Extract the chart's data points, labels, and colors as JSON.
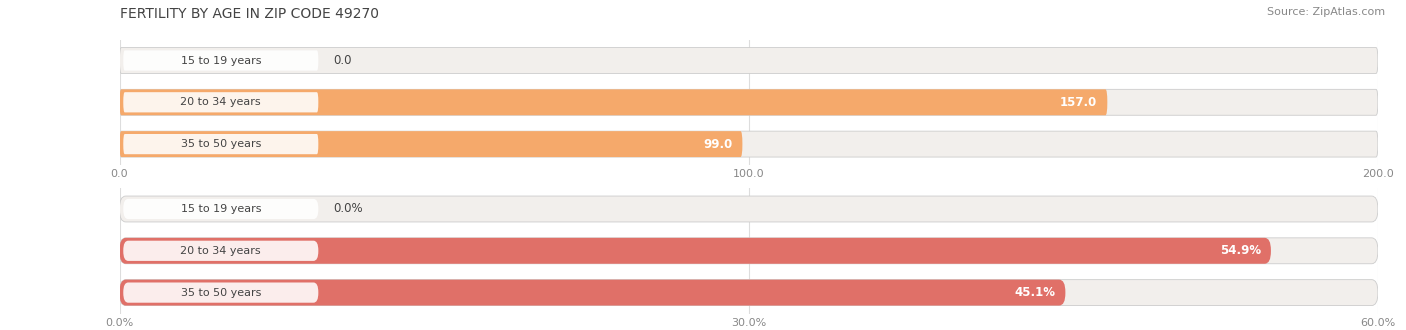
{
  "title": "FERTILITY BY AGE IN ZIP CODE 49270",
  "source": "Source: ZipAtlas.com",
  "chart1": {
    "categories": [
      "15 to 19 years",
      "20 to 34 years",
      "35 to 50 years"
    ],
    "values": [
      0.0,
      157.0,
      99.0
    ],
    "xlim": [
      0,
      200
    ],
    "xticks": [
      0.0,
      100.0,
      200.0
    ],
    "xtick_labels": [
      "0.0",
      "100.0",
      "200.0"
    ],
    "bar_color": "#F5A96B",
    "bar_bg_color": "#F2EFEC",
    "pill_bg": "#FFFFFF"
  },
  "chart2": {
    "categories": [
      "15 to 19 years",
      "20 to 34 years",
      "35 to 50 years"
    ],
    "values": [
      0.0,
      54.9,
      45.1
    ],
    "xlim": [
      0,
      60
    ],
    "xticks": [
      0.0,
      30.0,
      60.0
    ],
    "xtick_labels": [
      "0.0%",
      "30.0%",
      "60.0%"
    ],
    "bar_color": "#E07068",
    "bar_bg_color": "#F2EFEC",
    "pill_bg": "#FFFFFF"
  },
  "bar_height": 0.62,
  "label_fontsize": 8.5,
  "category_fontsize": 8.0,
  "title_fontsize": 10,
  "source_fontsize": 8,
  "title_color": "#444444",
  "source_color": "#888888",
  "category_color": "#444444",
  "tick_fontsize": 8,
  "background_color": "#FFFFFF",
  "grid_color": "#DDDDDD"
}
